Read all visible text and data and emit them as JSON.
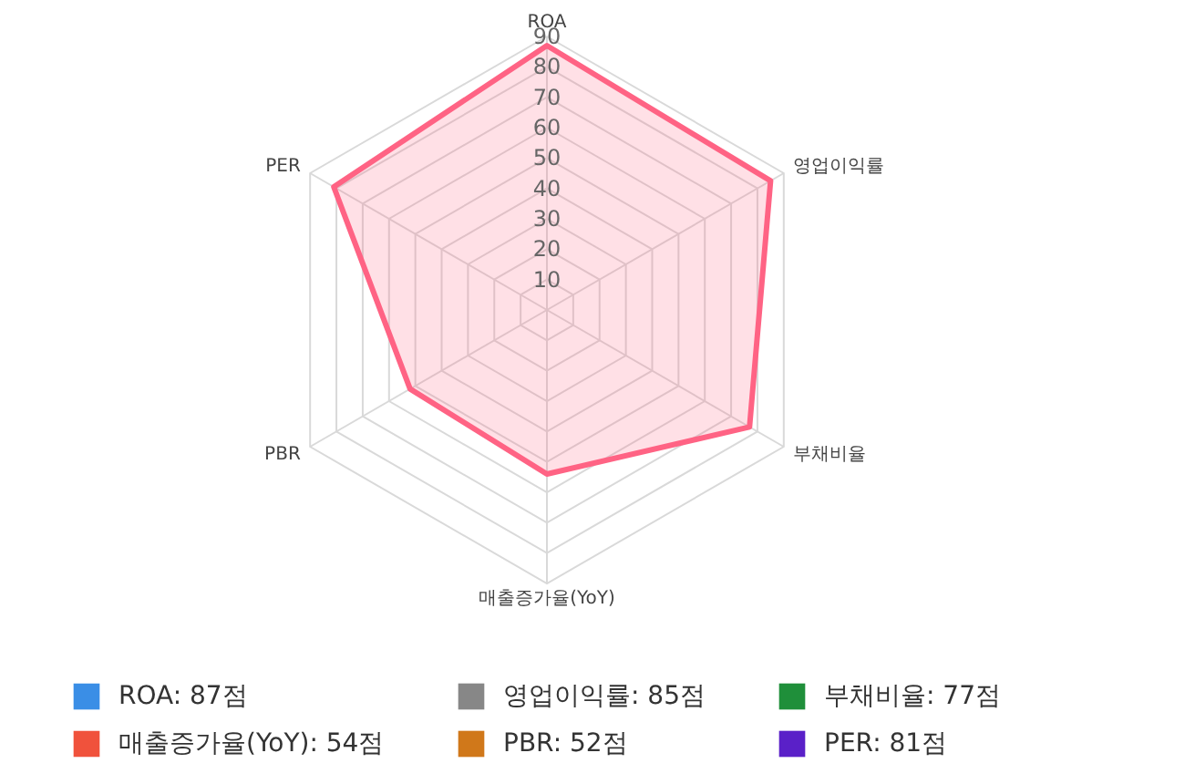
{
  "chart_data": {
    "type": "radar",
    "categories": [
      "ROA",
      "영업이익률",
      "부채비율",
      "매출증가율(YoY)",
      "PBR",
      "PER"
    ],
    "series": [
      {
        "color": "#ff6384",
        "values": [
          87,
          85,
          77,
          54,
          52,
          81
        ]
      }
    ],
    "ylim": [
      0,
      90
    ],
    "yticks": [
      10,
      20,
      30,
      40,
      50,
      60,
      70,
      80,
      90
    ],
    "grid": true,
    "colors": [
      "#3a8ee6",
      "#878787",
      "#1f8f3a",
      "#f0523c",
      "#d0781a",
      "#5a20c8"
    ],
    "value_labels": [
      "ROA: 87점",
      "영업이익률: 85점",
      "부채비율: 77점",
      "매출증가율(YoY): 54점",
      "PBR: 52점",
      "PER: 81점"
    ]
  }
}
